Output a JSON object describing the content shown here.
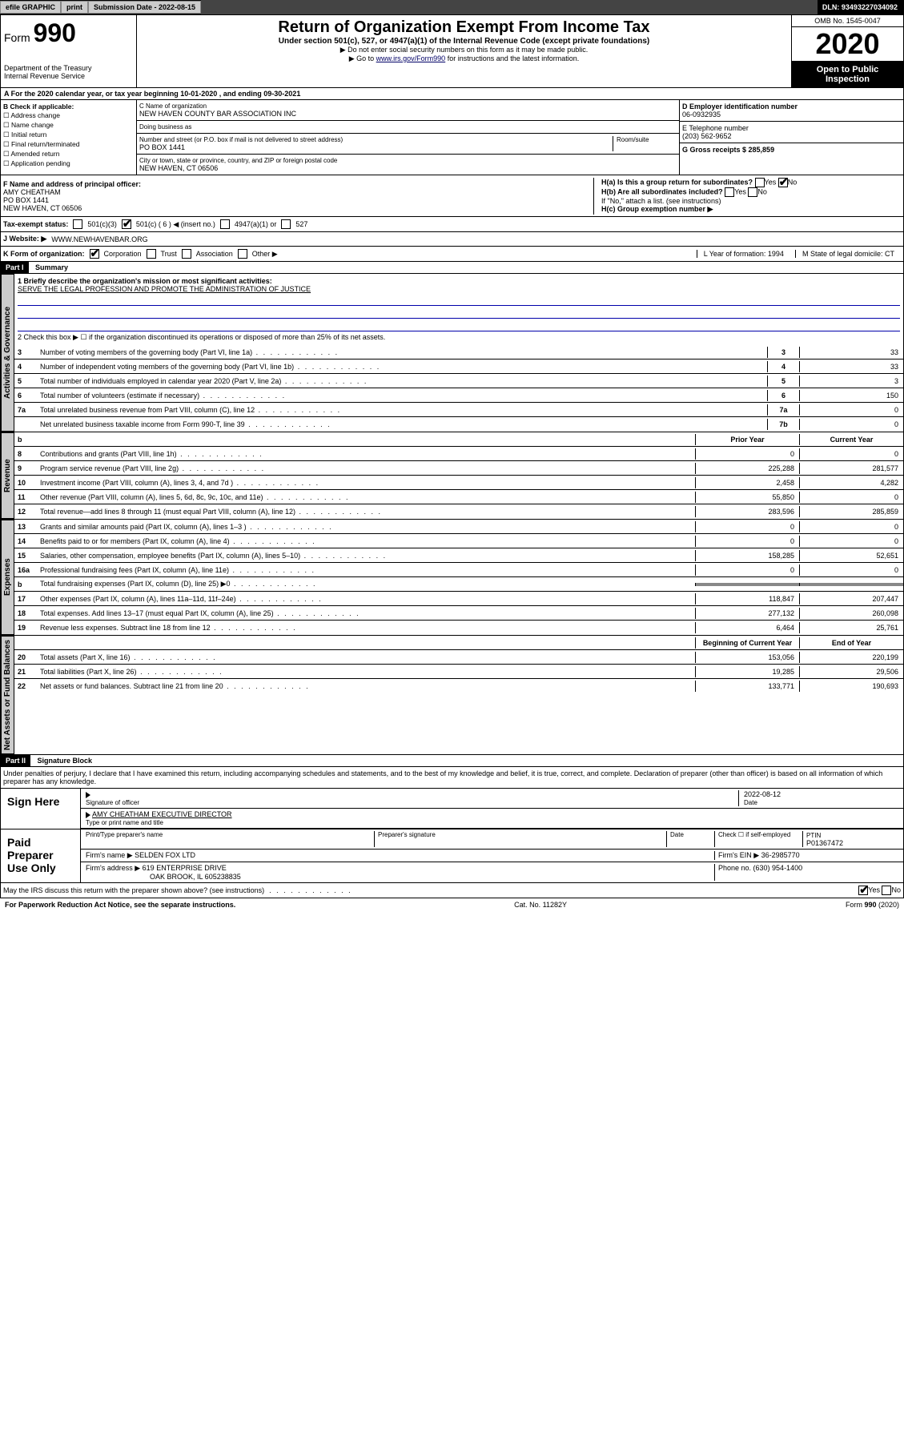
{
  "header": {
    "efile": "efile GRAPHIC",
    "print": "print",
    "submission_label": "Submission Date - 2022-08-15",
    "dln": "DLN: 93493227034092"
  },
  "form_top": {
    "form_no": "990",
    "dept": "Department of the Treasury",
    "irs": "Internal Revenue Service",
    "title": "Return of Organization Exempt From Income Tax",
    "sub": "Under section 501(c), 527, or 4947(a)(1) of the Internal Revenue Code (except private foundations)",
    "note1": "▶ Do not enter social security numbers on this form as it may be made public.",
    "note2_pre": "▶ Go to ",
    "note2_link": "www.irs.gov/Form990",
    "note2_post": " for instructions and the latest information.",
    "omb": "OMB No. 1545-0047",
    "year": "2020",
    "open": "Open to Public Inspection"
  },
  "row_a": "A For the 2020 calendar year, or tax year beginning 10-01-2020    , and ending 09-30-2021",
  "col_b": {
    "label": "B Check if applicable:",
    "items": [
      "Address change",
      "Name change",
      "Initial return",
      "Final return/terminated",
      "Amended return",
      "Application pending"
    ]
  },
  "col_c": {
    "name_label": "C Name of organization",
    "name": "NEW HAVEN COUNTY BAR ASSOCIATION INC",
    "dba_label": "Doing business as",
    "addr_label": "Number and street (or P.O. box if mail is not delivered to street address)",
    "room_label": "Room/suite",
    "addr": "PO BOX 1441",
    "city_label": "City or town, state or province, country, and ZIP or foreign postal code",
    "city": "NEW HAVEN, CT  06506"
  },
  "col_d": {
    "label": "D Employer identification number",
    "val": "06-0932935"
  },
  "col_e": {
    "label": "E Telephone number",
    "val": "(203) 562-9652"
  },
  "col_g": {
    "label": "G Gross receipts $ 285,859"
  },
  "col_f": {
    "label": "F  Name and address of principal officer:",
    "name": "AMY CHEATHAM",
    "addr": "PO BOX 1441",
    "city": "NEW HAVEN, CT  06506"
  },
  "col_h": {
    "a_label": "H(a)  Is this a group return for subordinates?",
    "b_label": "H(b)  Are all subordinates included?",
    "note": "If \"No,\" attach a list. (see instructions)",
    "c_label": "H(c)  Group exemption number ▶"
  },
  "tax_status": {
    "label": "Tax-exempt status:",
    "opts": [
      "501(c)(3)",
      "501(c) ( 6 ) ◀ (insert no.)",
      "4947(a)(1) or",
      "527"
    ]
  },
  "website": {
    "label": "J   Website: ▶",
    "val": "WWW.NEWHAVENBAR.ORG"
  },
  "row_k": {
    "label": "K Form of organization:",
    "opts": [
      "Corporation",
      "Trust",
      "Association",
      "Other ▶"
    ],
    "l": "L Year of formation: 1994",
    "m": "M State of legal domicile: CT"
  },
  "part1": {
    "hdr": "Part I",
    "title": "Summary",
    "q1": "1  Briefly describe the organization's mission or most significant activities:",
    "mission": "SERVE THE LEGAL PROFESSION AND PROMOTE THE ADMINISTRATION OF JUSTICE",
    "q2": "2   Check this box ▶ ☐  if the organization discontinued its operations or disposed of more than 25% of its net assets."
  },
  "gov_rows": [
    {
      "n": "3",
      "t": "Number of voting members of the governing body (Part VI, line 1a)",
      "box": "3",
      "v": "33"
    },
    {
      "n": "4",
      "t": "Number of independent voting members of the governing body (Part VI, line 1b)",
      "box": "4",
      "v": "33"
    },
    {
      "n": "5",
      "t": "Total number of individuals employed in calendar year 2020 (Part V, line 2a)",
      "box": "5",
      "v": "3"
    },
    {
      "n": "6",
      "t": "Total number of volunteers (estimate if necessary)",
      "box": "6",
      "v": "150"
    },
    {
      "n": "7a",
      "t": "Total unrelated business revenue from Part VIII, column (C), line 12",
      "box": "7a",
      "v": "0"
    },
    {
      "n": "",
      "t": "Net unrelated business taxable income from Form 990-T, line 39",
      "box": "7b",
      "v": "0"
    }
  ],
  "rev_hdr": {
    "b": "b",
    "prior": "Prior Year",
    "curr": "Current Year"
  },
  "rev_rows": [
    {
      "n": "8",
      "t": "Contributions and grants (Part VIII, line 1h)",
      "p": "0",
      "c": "0"
    },
    {
      "n": "9",
      "t": "Program service revenue (Part VIII, line 2g)",
      "p": "225,288",
      "c": "281,577"
    },
    {
      "n": "10",
      "t": "Investment income (Part VIII, column (A), lines 3, 4, and 7d )",
      "p": "2,458",
      "c": "4,282"
    },
    {
      "n": "11",
      "t": "Other revenue (Part VIII, column (A), lines 5, 6d, 8c, 9c, 10c, and 11e)",
      "p": "55,850",
      "c": "0"
    },
    {
      "n": "12",
      "t": "Total revenue—add lines 8 through 11 (must equal Part VIII, column (A), line 12)",
      "p": "283,596",
      "c": "285,859"
    }
  ],
  "exp_rows": [
    {
      "n": "13",
      "t": "Grants and similar amounts paid (Part IX, column (A), lines 1–3 )",
      "p": "0",
      "c": "0"
    },
    {
      "n": "14",
      "t": "Benefits paid to or for members (Part IX, column (A), line 4)",
      "p": "0",
      "c": "0"
    },
    {
      "n": "15",
      "t": "Salaries, other compensation, employee benefits (Part IX, column (A), lines 5–10)",
      "p": "158,285",
      "c": "52,651"
    },
    {
      "n": "16a",
      "t": "Professional fundraising fees (Part IX, column (A), line 11e)",
      "p": "0",
      "c": "0"
    },
    {
      "n": "b",
      "t": "Total fundraising expenses (Part IX, column (D), line 25) ▶0",
      "p": "",
      "c": "",
      "gray": true
    },
    {
      "n": "17",
      "t": "Other expenses (Part IX, column (A), lines 11a–11d, 11f–24e)",
      "p": "118,847",
      "c": "207,447"
    },
    {
      "n": "18",
      "t": "Total expenses. Add lines 13–17 (must equal Part IX, column (A), line 25)",
      "p": "277,132",
      "c": "260,098"
    },
    {
      "n": "19",
      "t": "Revenue less expenses. Subtract line 18 from line 12",
      "p": "6,464",
      "c": "25,761"
    }
  ],
  "net_hdr": {
    "beg": "Beginning of Current Year",
    "end": "End of Year"
  },
  "net_rows": [
    {
      "n": "20",
      "t": "Total assets (Part X, line 16)",
      "p": "153,056",
      "c": "220,199"
    },
    {
      "n": "21",
      "t": "Total liabilities (Part X, line 26)",
      "p": "19,285",
      "c": "29,506"
    },
    {
      "n": "22",
      "t": "Net assets or fund balances. Subtract line 21 from line 20",
      "p": "133,771",
      "c": "190,693"
    }
  ],
  "part2": {
    "hdr": "Part II",
    "title": "Signature Block",
    "decl": "Under penalties of perjury, I declare that I have examined this return, including accompanying schedules and statements, and to the best of my knowledge and belief, it is true, correct, and complete. Declaration of preparer (other than officer) is based on all information of which preparer has any knowledge."
  },
  "sign": {
    "here": "Sign Here",
    "sig_label": "Signature of officer",
    "date": "2022-08-12",
    "date_label": "Date",
    "name": "AMY CHEATHAM  EXECUTIVE DIRECTOR",
    "name_label": "Type or print name and title"
  },
  "paid": {
    "label": "Paid Preparer Use Only",
    "cols": [
      "Print/Type preparer's name",
      "Preparer's signature",
      "Date"
    ],
    "self_emp": "Check ☐ if self-employed",
    "ptin_label": "PTIN",
    "ptin": "P01367472",
    "firm_name_label": "Firm's name    ▶",
    "firm_name": "SELDEN FOX LTD",
    "firm_ein": "Firm's EIN ▶ 36-2985770",
    "firm_addr_label": "Firm's address ▶",
    "firm_addr": "619 ENTERPRISE DRIVE",
    "firm_city": "OAK BROOK, IL  605238835",
    "phone": "Phone no. (630) 954-1400"
  },
  "bottom": {
    "q": "May the IRS discuss this return with the preparer shown above? (see instructions)",
    "notice": "For Paperwork Reduction Act Notice, see the separate instructions.",
    "cat": "Cat. No. 11282Y",
    "form": "Form 990 (2020)"
  },
  "yes": "Yes",
  "no": "No"
}
